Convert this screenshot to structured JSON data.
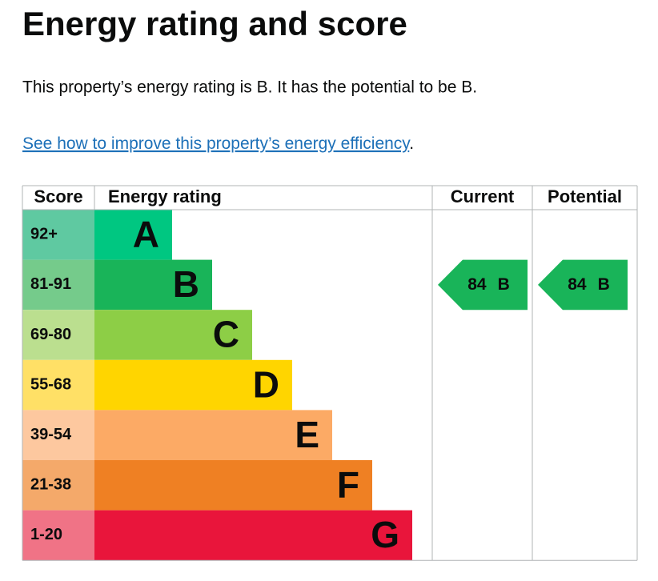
{
  "heading": "Energy rating and score",
  "summary": "This property’s energy rating is B. It has the potential to be B.",
  "link": {
    "text": "See how to improve this property’s energy efficiency",
    "suffix": "."
  },
  "table": {
    "headers": [
      "Score",
      "Energy rating",
      "Current",
      "Potential"
    ],
    "bands": [
      {
        "score": "92+",
        "letter": "A",
        "color": "#00c781",
        "score_color": "#5fc9a1"
      },
      {
        "score": "81-91",
        "letter": "B",
        "color": "#19b459",
        "score_color": "#75cb8b"
      },
      {
        "score": "69-80",
        "letter": "C",
        "color": "#8dce46",
        "score_color": "#bbdf8f"
      },
      {
        "score": "55-68",
        "letter": "D",
        "color": "#ffd500",
        "score_color": "#ffe066"
      },
      {
        "score": "39-54",
        "letter": "E",
        "color": "#fcaa65",
        "score_color": "#fdc89f"
      },
      {
        "score": "21-38",
        "letter": "F",
        "color": "#ef8023",
        "score_color": "#f4a96a"
      },
      {
        "score": "1-20",
        "letter": "G",
        "color": "#e9153b",
        "score_color": "#f07386"
      }
    ],
    "current": {
      "score": 84,
      "letter": "B"
    },
    "potential": {
      "score": 84,
      "letter": "B"
    }
  }
}
